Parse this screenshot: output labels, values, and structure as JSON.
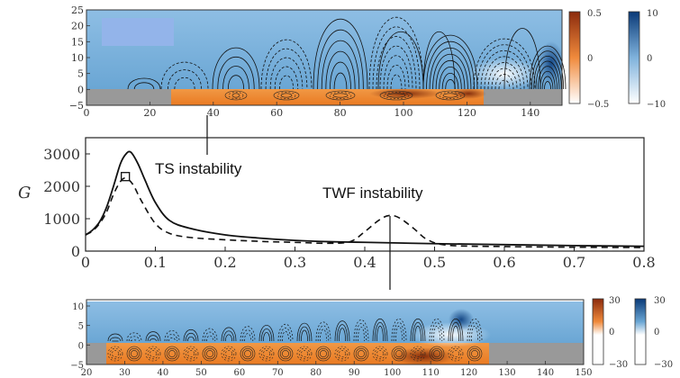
{
  "figure": {
    "top_panel": {
      "y_ticks": [
        "25",
        "20",
        "15",
        "10",
        "5",
        "0",
        "−5"
      ],
      "x_ticks": [
        "0",
        "20",
        "40",
        "60",
        "80",
        "100",
        "120",
        "140"
      ],
      "colorbar_left": {
        "max": "0.5",
        "mid": "0",
        "min": "−0.5",
        "colors": [
          "#8b2b0d",
          "#f08a3c",
          "#ffffff"
        ]
      },
      "colorbar_right": {
        "max": "10",
        "mid": "0",
        "min": "−10",
        "colors": [
          "#0a3a78",
          "#7fb2dc",
          "#ffffff"
        ]
      }
    },
    "bottom_panel": {
      "y_ticks": [
        "10",
        "5",
        "0",
        "−5"
      ],
      "x_ticks": [
        "20",
        "30",
        "40",
        "50",
        "60",
        "70",
        "80",
        "90",
        "100",
        "110",
        "120",
        "130",
        "140",
        "150"
      ],
      "colorbar_left": {
        "max": "30",
        "mid": "0",
        "min": "−30"
      },
      "colorbar_right": {
        "max": "30",
        "mid": "0",
        "min": "−30"
      }
    },
    "annotations": {
      "ts": "TS instability",
      "twf": "TWF instability"
    },
    "colors": {
      "sky": "#7fb6df",
      "orange": "#f0892e",
      "gray": "#999999",
      "line": "#111111"
    }
  },
  "chart_data": {
    "type": "line",
    "ylabel": "G",
    "xlim": [
      0,
      0.8
    ],
    "ylim": [
      0,
      3500
    ],
    "x_ticks": [
      "0",
      "0.1",
      "0.2",
      "0.3",
      "0.4",
      "0.5",
      "0.6",
      "0.7",
      "0.8"
    ],
    "y_ticks": [
      "0",
      "1000",
      "2000",
      "3000"
    ],
    "series": [
      {
        "name": "solid",
        "style": "solid",
        "points": [
          [
            0,
            500
          ],
          [
            0.01,
            650
          ],
          [
            0.02,
            900
          ],
          [
            0.03,
            1350
          ],
          [
            0.04,
            2000
          ],
          [
            0.05,
            2700
          ],
          [
            0.058,
            3000
          ],
          [
            0.065,
            3050
          ],
          [
            0.075,
            2700
          ],
          [
            0.085,
            2200
          ],
          [
            0.1,
            1500
          ],
          [
            0.12,
            950
          ],
          [
            0.15,
            700
          ],
          [
            0.2,
            500
          ],
          [
            0.25,
            400
          ],
          [
            0.3,
            330
          ],
          [
            0.35,
            290
          ],
          [
            0.4,
            270
          ],
          [
            0.45,
            250
          ],
          [
            0.5,
            230
          ],
          [
            0.6,
            200
          ],
          [
            0.7,
            170
          ],
          [
            0.8,
            150
          ]
        ]
      },
      {
        "name": "dashed",
        "style": "dashed",
        "points": [
          [
            0,
            500
          ],
          [
            0.01,
            620
          ],
          [
            0.02,
            850
          ],
          [
            0.03,
            1200
          ],
          [
            0.04,
            1750
          ],
          [
            0.05,
            2150
          ],
          [
            0.058,
            2250
          ],
          [
            0.068,
            2050
          ],
          [
            0.08,
            1550
          ],
          [
            0.1,
            850
          ],
          [
            0.12,
            550
          ],
          [
            0.15,
            420
          ],
          [
            0.2,
            350
          ],
          [
            0.25,
            300
          ],
          [
            0.3,
            270
          ],
          [
            0.35,
            240
          ],
          [
            0.38,
            300
          ],
          [
            0.4,
            600
          ],
          [
            0.42,
            950
          ],
          [
            0.435,
            1100
          ],
          [
            0.45,
            1020
          ],
          [
            0.47,
            700
          ],
          [
            0.49,
            350
          ],
          [
            0.52,
            180
          ],
          [
            0.6,
            140
          ],
          [
            0.7,
            120
          ],
          [
            0.8,
            110
          ]
        ]
      }
    ],
    "marker": {
      "x": 0.057,
      "y": 2300,
      "shape": "square"
    }
  }
}
